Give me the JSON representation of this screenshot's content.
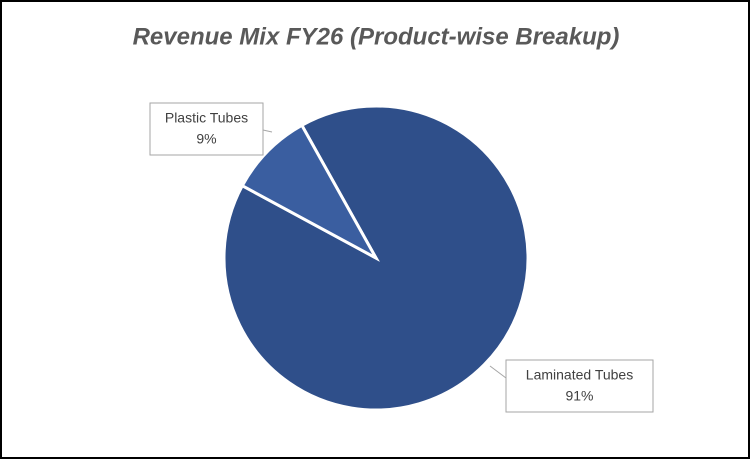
{
  "chart_data": {
    "type": "pie",
    "title": "Revenue Mix FY26 (Product-wise Breakup)",
    "categories": [
      "Laminated Tubes",
      "Plastic Tubes"
    ],
    "values": [
      91,
      9
    ],
    "value_labels": [
      "91%",
      "9%"
    ],
    "colors": [
      "#2f4f8a",
      "#3a5ea0"
    ]
  }
}
